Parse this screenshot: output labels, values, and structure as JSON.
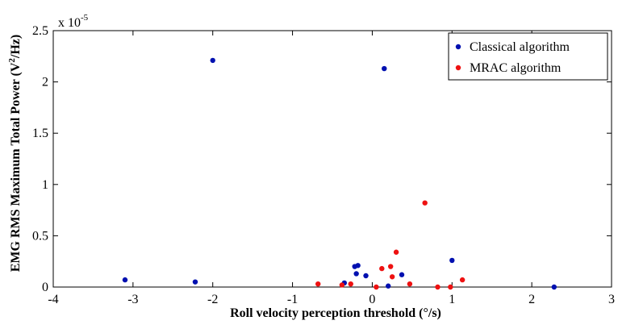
{
  "chart_data": {
    "type": "scatter",
    "title": "",
    "xlabel": "Roll velocity perception threshold (°/s)",
    "ylabel_main": "EMG RMS Maximum Total Power (V",
    "ylabel_sup": "2",
    "ylabel_end": "/Hz)",
    "y_multiplier_base": "x 10",
    "y_multiplier_exp": "-5",
    "xlim": [
      -4,
      3
    ],
    "ylim": [
      0,
      2.5
    ],
    "x_ticks": [
      -4,
      -3,
      -2,
      -1,
      0,
      1,
      2,
      3
    ],
    "x_tick_labels": [
      "-4",
      "-3",
      "-2",
      "-1",
      "0",
      "1",
      "2",
      "3"
    ],
    "y_ticks": [
      0,
      0.5,
      1,
      1.5,
      2,
      2.5
    ],
    "y_tick_labels": [
      "0",
      "0.5",
      "1",
      "1.5",
      "2",
      "2.5"
    ],
    "grid": false,
    "legend_position": "top-right",
    "series": [
      {
        "name": "Classical algorithm",
        "color": "#0010b0",
        "points": [
          [
            -3.1,
            0.07
          ],
          [
            -2.22,
            0.05
          ],
          [
            -2.0,
            2.21
          ],
          [
            -0.35,
            0.04
          ],
          [
            -0.22,
            0.2
          ],
          [
            -0.18,
            0.21
          ],
          [
            -0.2,
            0.13
          ],
          [
            -0.08,
            0.11
          ],
          [
            0.15,
            2.13
          ],
          [
            0.2,
            0.01
          ],
          [
            0.37,
            0.12
          ],
          [
            1.0,
            0.26
          ],
          [
            2.28,
            0.0
          ]
        ]
      },
      {
        "name": "MRAC algorithm",
        "color": "#ee1111",
        "points": [
          [
            -0.68,
            0.03
          ],
          [
            -0.38,
            0.02
          ],
          [
            -0.27,
            0.03
          ],
          [
            0.05,
            0.0
          ],
          [
            0.12,
            0.18
          ],
          [
            0.23,
            0.2
          ],
          [
            0.25,
            0.1
          ],
          [
            0.3,
            0.34
          ],
          [
            0.47,
            0.03
          ],
          [
            0.66,
            0.82
          ],
          [
            0.82,
            0.0
          ],
          [
            0.98,
            0.0
          ],
          [
            1.13,
            0.07
          ]
        ]
      }
    ]
  }
}
